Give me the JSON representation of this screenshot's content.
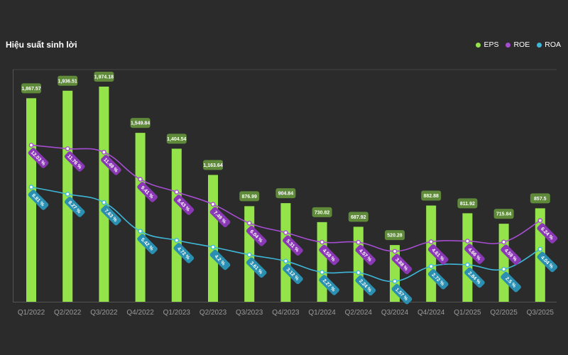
{
  "header": {
    "title": "Hiệu suất sinh lời"
  },
  "legend": [
    {
      "name": "EPS",
      "color": "#94e34b"
    },
    {
      "name": "ROE",
      "color": "#a64dd2"
    },
    {
      "name": "ROA",
      "color": "#3fb7d9"
    }
  ],
  "chart_data": {
    "type": "bar",
    "title": "Hiệu suất sinh lời",
    "categories": [
      "Q1/2022",
      "Q2/2022",
      "Q3/2022",
      "Q4/2022",
      "Q1/2023",
      "Q2/2023",
      "Q3/2023",
      "Q4/2023",
      "Q1/2024",
      "Q2/2024",
      "Q3/2024",
      "Q4/2024",
      "Q1/2025",
      "Q2/2025",
      "Q3/2025"
    ],
    "series": [
      {
        "name": "EPS",
        "type": "bar",
        "axis": "left",
        "values": [
          1867.57,
          1936.51,
          1974.18,
          1549.84,
          1404.54,
          1163.64,
          876.99,
          904.84,
          730.82,
          687.92,
          520.28,
          882.88,
          811.92,
          715.84,
          857.5
        ],
        "labels": [
          "1,867.57",
          "1,936.51",
          "1,974.18",
          "1,549.84",
          "1,404.54",
          "1,163.64",
          "876.99",
          "904.84",
          "730.82",
          "687.92",
          "520.28",
          "882.88",
          "811.92",
          "715.84",
          "857.5"
        ]
      },
      {
        "name": "ROE",
        "type": "line",
        "axis": "right",
        "values": [
          12.03,
          11.76,
          11.49,
          9.41,
          8.43,
          7.49,
          6.04,
          5.31,
          4.58,
          4.57,
          3.88,
          4.61,
          4.66,
          4.59,
          6.24
        ],
        "labels": [
          "12.03 %",
          "11.76 %",
          "11.49 %",
          "9.41 %",
          "8.43 %",
          "7.49 %",
          "6.04 %",
          "5.31 %",
          "4.58 %",
          "4.57 %",
          "3.88 %",
          "4.61 %",
          "4.66 %",
          "4.59 %",
          "6.24 %"
        ]
      },
      {
        "name": "ROA",
        "type": "line",
        "axis": "right",
        "values": [
          8.81,
          8.27,
          7.63,
          5.42,
          4.72,
          4.2,
          3.61,
          3.12,
          2.27,
          2.24,
          1.57,
          2.72,
          2.84,
          2.5,
          4.04
        ],
        "labels": [
          "8.81 %",
          "8.27 %",
          "7.63 %",
          "5.42 %",
          "4.72 %",
          "4.2 %",
          "3.61 %",
          "3.12 %",
          "2.27 %",
          "2.24 %",
          "1.57 %",
          "2.72 %",
          "2.84 %",
          "2.5 %",
          "4.04 %"
        ]
      }
    ],
    "ylim_left": [
      0,
      2150
    ],
    "ylim_right": [
      0,
      18
    ],
    "grid": false
  }
}
